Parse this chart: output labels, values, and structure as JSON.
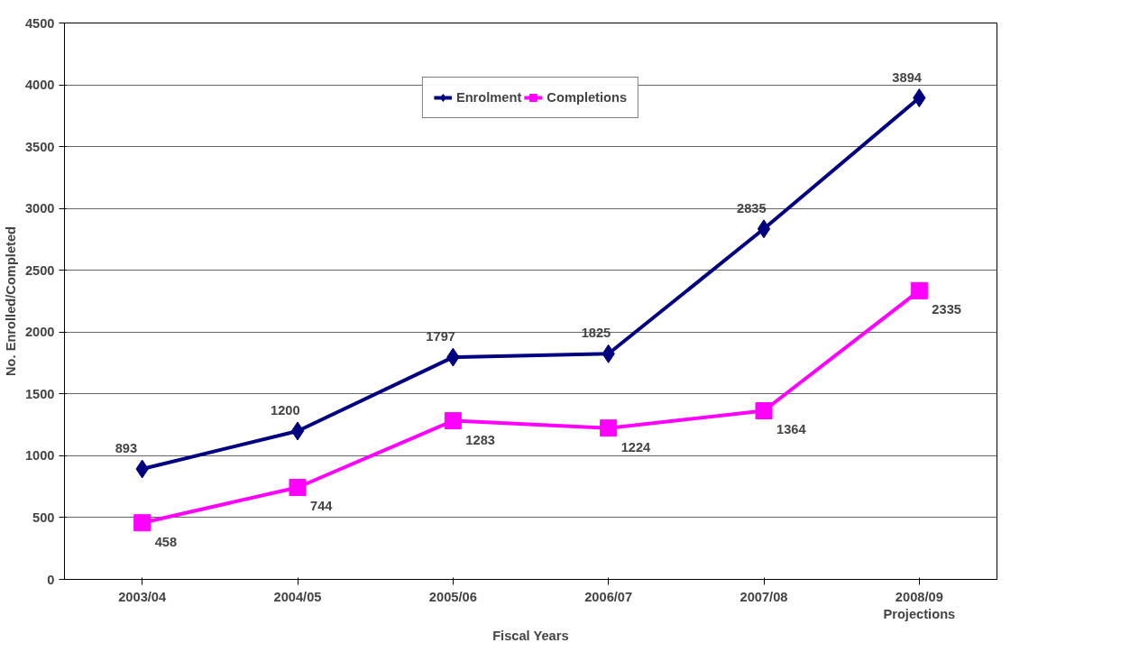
{
  "chart_data": {
    "type": "line",
    "xlabel": "Fiscal Years",
    "ylabel": "No. Enrolled/Completed",
    "categories": [
      "2003/04",
      "2004/05",
      "2005/06",
      "2006/07",
      "2007/08",
      "2008/09\nProjections"
    ],
    "series": [
      {
        "name": "Enrolment",
        "color": "#000080",
        "marker": "diamond",
        "values": [
          893,
          1200,
          1797,
          1825,
          2835,
          3894
        ]
      },
      {
        "name": "Completions",
        "color": "#ff00ff",
        "marker": "square",
        "values": [
          458,
          744,
          1283,
          1224,
          1364,
          2335
        ]
      }
    ],
    "ylim": [
      0,
      4500
    ],
    "yticks": [
      0,
      500,
      1000,
      1500,
      2000,
      2500,
      3000,
      3500,
      4000,
      4500
    ],
    "grid": "y",
    "legend": "top",
    "data_labels": true,
    "line_style": "solid"
  }
}
